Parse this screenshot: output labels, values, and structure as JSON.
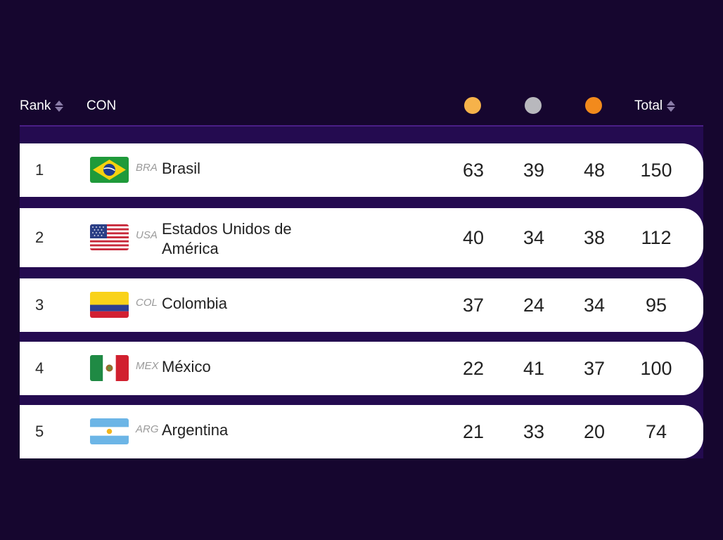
{
  "header": {
    "rank_label": "Rank",
    "con_label": "CON",
    "total_label": "Total",
    "gold_color": "#f6b24a",
    "silver_color": "#b8b8bd",
    "bronze_color": "#f28a1c"
  },
  "rows": [
    {
      "rank": "1",
      "code": "BRA",
      "name": "Brasil",
      "gold": "63",
      "silver": "39",
      "bronze": "48",
      "total": "150",
      "flag": "brazil-flag"
    },
    {
      "rank": "2",
      "code": "USA",
      "name": "Estados Unidos de América",
      "gold": "40",
      "silver": "34",
      "bronze": "38",
      "total": "112",
      "flag": "usa-flag"
    },
    {
      "rank": "3",
      "code": "COL",
      "name": "Colombia",
      "gold": "37",
      "silver": "24",
      "bronze": "34",
      "total": "95",
      "flag": "colombia-flag"
    },
    {
      "rank": "4",
      "code": "MEX",
      "name": "México",
      "gold": "22",
      "silver": "41",
      "bronze": "37",
      "total": "100",
      "flag": "mexico-flag"
    },
    {
      "rank": "5",
      "code": "ARG",
      "name": "Argentina",
      "gold": "21",
      "silver": "33",
      "bronze": "20",
      "total": "74",
      "flag": "argentina-flag"
    }
  ]
}
